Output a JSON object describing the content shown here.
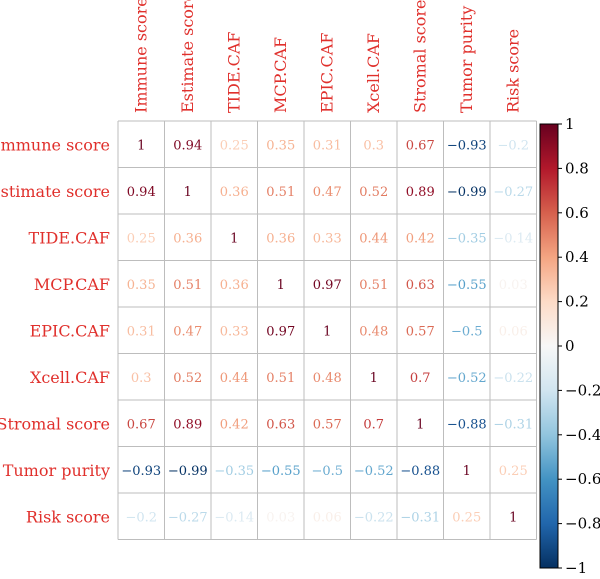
{
  "chart_data": {
    "type": "heatmap",
    "variables": [
      "Immune score",
      "Estimate score",
      "TIDE.CAF",
      "MCP.CAF",
      "EPIC.CAF",
      "Xcell.CAF",
      "Stromal score",
      "Tumor purity",
      "Risk score"
    ],
    "matrix_text": [
      [
        "1",
        "0.94",
        "0.25",
        "0.35",
        "0.31",
        "0.3",
        "0.67",
        "−0.93",
        "−0.2"
      ],
      [
        "0.94",
        "1",
        "0.36",
        "0.51",
        "0.47",
        "0.52",
        "0.89",
        "−0.99",
        "−0.27"
      ],
      [
        "0.25",
        "0.36",
        "1",
        "0.36",
        "0.33",
        "0.44",
        "0.42",
        "−0.35",
        "−0.14"
      ],
      [
        "0.35",
        "0.51",
        "0.36",
        "1",
        "0.97",
        "0.51",
        "0.63",
        "−0.55",
        "0.03"
      ],
      [
        "0.31",
        "0.47",
        "0.33",
        "0.97",
        "1",
        "0.48",
        "0.57",
        "−0.5",
        "0.06"
      ],
      [
        "0.3",
        "0.52",
        "0.44",
        "0.51",
        "0.48",
        "1",
        "0.7",
        "−0.52",
        "−0.22"
      ],
      [
        "0.67",
        "0.89",
        "0.42",
        "0.63",
        "0.57",
        "0.7",
        "1",
        "−0.88",
        "−0.31"
      ],
      [
        "−0.93",
        "−0.99",
        "−0.35",
        "−0.55",
        "−0.5",
        "−0.52",
        "−0.88",
        "1",
        "0.25"
      ],
      [
        "−0.2",
        "−0.27",
        "−0.14",
        "0.03",
        "0.06",
        "−0.22",
        "−0.31",
        "0.25",
        "1"
      ]
    ],
    "values": [
      [
        1,
        0.94,
        0.25,
        0.35,
        0.31,
        0.3,
        0.67,
        -0.93,
        -0.2
      ],
      [
        0.94,
        1,
        0.36,
        0.51,
        0.47,
        0.52,
        0.89,
        -0.99,
        -0.27
      ],
      [
        0.25,
        0.36,
        1,
        0.36,
        0.33,
        0.44,
        0.42,
        -0.35,
        -0.14
      ],
      [
        0.35,
        0.51,
        0.36,
        1,
        0.97,
        0.51,
        0.63,
        -0.55,
        0.03
      ],
      [
        0.31,
        0.47,
        0.33,
        0.97,
        1,
        0.48,
        0.57,
        -0.5,
        0.06
      ],
      [
        0.3,
        0.52,
        0.44,
        0.51,
        0.48,
        1,
        0.7,
        -0.52,
        -0.22
      ],
      [
        0.67,
        0.89,
        0.42,
        0.63,
        0.57,
        0.7,
        1,
        -0.88,
        -0.31
      ],
      [
        -0.93,
        -0.99,
        -0.35,
        -0.55,
        -0.5,
        -0.52,
        -0.88,
        1,
        0.25
      ],
      [
        -0.2,
        -0.27,
        -0.14,
        0.03,
        0.06,
        -0.22,
        -0.31,
        0.25,
        1
      ]
    ],
    "color_scale": {
      "range": [
        -1,
        1
      ],
      "low_color": "#053061",
      "mid_color": "#f7f7f7",
      "high_color": "#67001f",
      "ticks": [
        "1",
        "0.8",
        "0.6",
        "0.4",
        "0.2",
        "0",
        "−0.2",
        "−0.4",
        "−0.6",
        "−0.8",
        "−1"
      ]
    },
    "label_color": "#e0302c",
    "grid": true,
    "legend": "right colorbar"
  }
}
